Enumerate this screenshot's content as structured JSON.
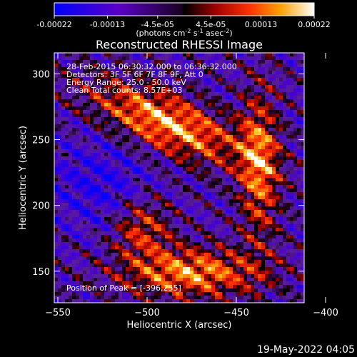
{
  "colorbar": {
    "tick_labels": [
      "-0.00022",
      "-0.00013",
      "-4.5e-05",
      "4.5e-05",
      "0.00013",
      "0.00022"
    ],
    "tick_values": [
      -0.00022,
      -0.00013,
      -4.5e-05,
      4.5e-05,
      0.00013,
      0.00022
    ],
    "range": [
      -0.00022,
      0.00022
    ],
    "unit_label": "(photons cm",
    "unit_exp1": "-2",
    "unit_mid": " s",
    "unit_exp2": "-1",
    "unit_tail": " asec",
    "unit_exp3": "-2",
    "unit_close": ")"
  },
  "chart_data": {
    "type": "heatmap",
    "title": "Reconstructed RHESSI Image",
    "xlabel": "Heliocentric X (arcsec)",
    "ylabel": "Heliocentric Y (arcsec)",
    "xlim": [
      -552,
      -412
    ],
    "ylim": [
      126,
      316
    ],
    "x_ticks": [
      -550,
      -500,
      -450,
      -400
    ],
    "x_tick_labels": [
      "−550",
      "−500",
      "−450",
      "−400"
    ],
    "y_ticks": [
      150,
      200,
      250,
      300
    ],
    "y_tick_labels": [
      "150",
      "200",
      "250",
      "300"
    ],
    "peak": [
      -396,
      255
    ],
    "colors": {
      "negative_min": "#0000ff",
      "zero": "#000000",
      "positive_low": "#c00000",
      "positive_mid": "#ff8000",
      "positive_max": "#ffffff"
    },
    "annotations": [
      "28-Feb-2015 06:30:32.000 to 06:36:32.000",
      "Detectors: 3F 5F 6F 7F 8F 9F, Att 0",
      "Energy Range: 25.0 - 50.0 keV",
      "Clean     Total counts: 8.57E+03"
    ],
    "peak_label": "Position of Peak = [-396,255]"
  },
  "footer_timestamp": "19-May-2022 04:05"
}
